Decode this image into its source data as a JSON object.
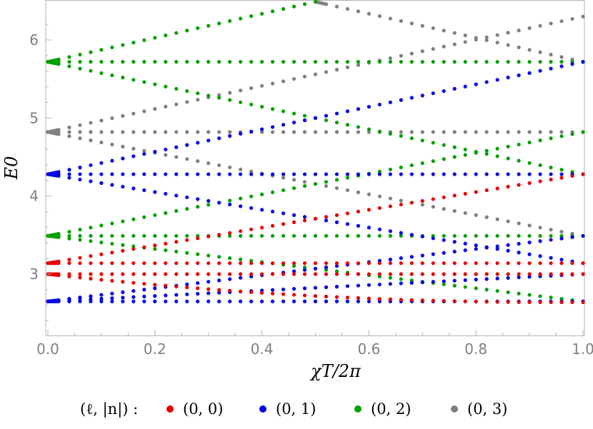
{
  "chart_data": {
    "type": "scatter",
    "xlabel": "χT/2π",
    "ylabel": "E0",
    "xlim": [
      0.0,
      1.0
    ],
    "ylim": [
      2.2,
      6.5
    ],
    "xticks": [
      "0.0",
      "0.2",
      "0.4",
      "0.6",
      "0.8",
      "1.0"
    ],
    "yticks": [
      "3",
      "4",
      "5",
      "6"
    ],
    "grid": false,
    "legend_position": "bottom",
    "legend_title": "(ℓ, |n|) :",
    "points_per_branch": 51,
    "series": [
      {
        "name": "(0, 0)",
        "color": "#e60000",
        "branches": [
          {
            "kind": "linear",
            "x": [
              0,
              1
            ],
            "y": [
              3.14,
              4.28
            ]
          },
          {
            "kind": "linear",
            "x": [
              0,
              1
            ],
            "y": [
              3.14,
              3.14
            ]
          },
          {
            "kind": "linear",
            "x": [
              0,
              1
            ],
            "y": [
              3.0,
              3.0
            ]
          },
          {
            "kind": "quadratic",
            "x": [
              0,
              0.5,
              1
            ],
            "y": [
              3.0,
              2.72,
              2.64
            ]
          }
        ]
      },
      {
        "name": "(0, 1)",
        "color": "#0000e6",
        "branches": [
          {
            "kind": "linear",
            "x": [
              0,
              1
            ],
            "y": [
              2.65,
              3.49
            ]
          },
          {
            "kind": "linear",
            "x": [
              0,
              1
            ],
            "y": [
              2.65,
              2.65
            ]
          },
          {
            "kind": "linear",
            "x": [
              0,
              1
            ],
            "y": [
              4.28,
              3.14
            ]
          },
          {
            "kind": "linear",
            "x": [
              0,
              1
            ],
            "y": [
              4.28,
              4.28
            ]
          },
          {
            "kind": "linear",
            "x": [
              0,
              1
            ],
            "y": [
              4.28,
              5.72
            ]
          },
          {
            "kind": "linear",
            "x": [
              0,
              1
            ],
            "y": [
              2.65,
              3.0
            ]
          }
        ]
      },
      {
        "name": "(0, 2)",
        "color": "#00a000",
        "branches": [
          {
            "kind": "linear",
            "x": [
              0,
              1
            ],
            "y": [
              3.49,
              4.82
            ]
          },
          {
            "kind": "linear",
            "x": [
              0,
              1
            ],
            "y": [
              3.49,
              3.49
            ]
          },
          {
            "kind": "linear",
            "x": [
              0,
              1
            ],
            "y": [
              3.49,
              2.65
            ]
          },
          {
            "kind": "linear",
            "x": [
              0,
              1
            ],
            "y": [
              5.72,
              5.72
            ]
          },
          {
            "kind": "linear",
            "x": [
              0,
              1
            ],
            "y": [
              5.72,
              4.28
            ]
          },
          {
            "kind": "linear",
            "x": [
              0,
              0.5
            ],
            "y": [
              5.72,
              6.49
            ]
          }
        ]
      },
      {
        "name": "(0, 3)",
        "color": "#808080",
        "branches": [
          {
            "kind": "linear",
            "x": [
              0,
              1
            ],
            "y": [
              4.82,
              6.3
            ]
          },
          {
            "kind": "linear",
            "x": [
              0,
              1
            ],
            "y": [
              4.82,
              4.82
            ]
          },
          {
            "kind": "linear",
            "x": [
              0,
              1
            ],
            "y": [
              4.82,
              3.49
            ]
          },
          {
            "kind": "linear",
            "x": [
              0.5,
              1
            ],
            "y": [
              6.49,
              5.72
            ]
          }
        ]
      }
    ]
  }
}
